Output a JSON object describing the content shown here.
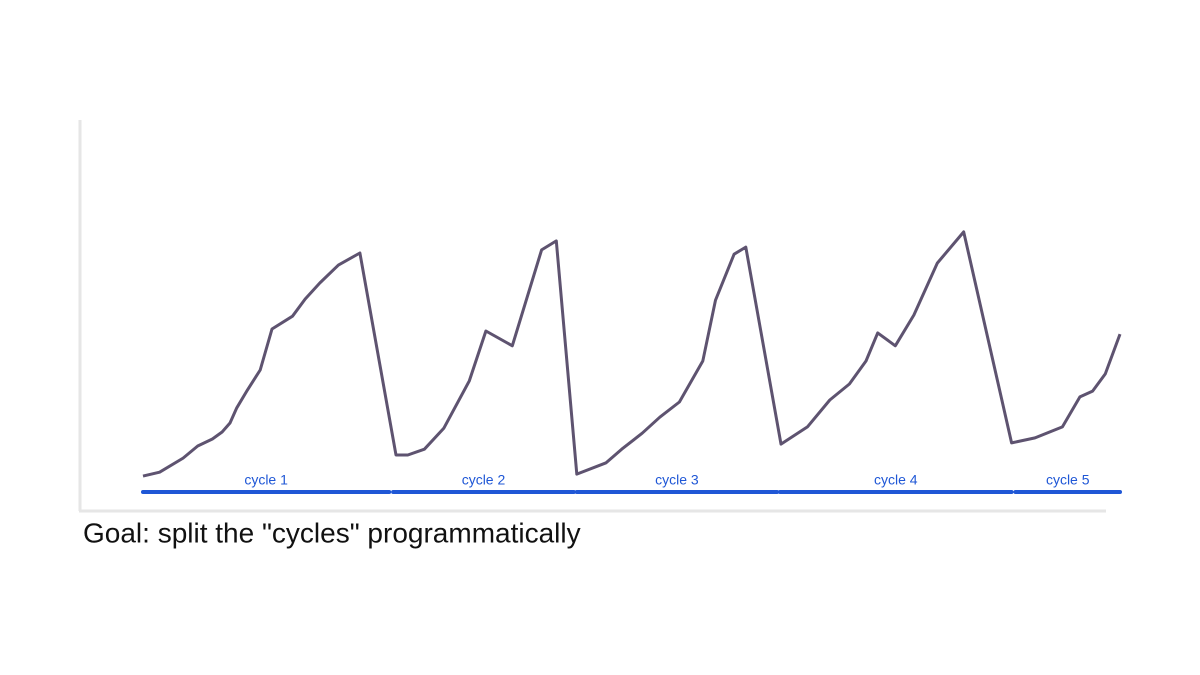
{
  "chart_data": {
    "type": "line",
    "caption": "Goal: split the \"cycles\" programmatically",
    "xlim": [
      0,
      100
    ],
    "ylim": [
      0,
      100
    ],
    "x": [
      0,
      1.7,
      4.1,
      5.6,
      7.1,
      8.1,
      8.9,
      9.6,
      10.7,
      12.0,
      13.2,
      15.3,
      16.6,
      18.1,
      20.0,
      22.2,
      25.9,
      27.1,
      28.8,
      30.8,
      33.4,
      35.1,
      37.8,
      40.8,
      42.3,
      44.4,
      47.4,
      49.0,
      51.1,
      52.9,
      54.9,
      57.3,
      58.6,
      60.5,
      61.7,
      65.3,
      68.0,
      70.3,
      72.3,
      74.0,
      75.2,
      77.0,
      78.9,
      81.3,
      84.0,
      88.9,
      91.3,
      94.1,
      95.9,
      97.2,
      98.5,
      100
    ],
    "series": [
      {
        "color": "#5e5370",
        "values": [
          8.7,
          9.7,
          13.3,
          16.4,
          18.2,
          20.0,
          22.3,
          26.2,
          30.8,
          35.9,
          46.4,
          49.7,
          54.1,
          58.2,
          62.8,
          65.9,
          14.1,
          14.1,
          15.6,
          21.0,
          33.1,
          45.9,
          42.1,
          66.7,
          69.0,
          9.2,
          12.1,
          15.6,
          19.7,
          23.8,
          27.7,
          38.2,
          53.8,
          65.6,
          67.4,
          16.9,
          21.3,
          28.2,
          32.3,
          38.2,
          45.4,
          42.1,
          50.0,
          63.3,
          71.3,
          17.2,
          18.5,
          21.3,
          29.0,
          30.5,
          34.9,
          45.1
        ]
      }
    ],
    "segment_color": "#1f57d6",
    "segments": [
      {
        "label": "cycle 1",
        "start": 0,
        "end": 25.2
      },
      {
        "label": "cycle 2",
        "start": 25.6,
        "end": 44.1
      },
      {
        "label": "cycle 3",
        "start": 44.4,
        "end": 64.9
      },
      {
        "label": "cycle 4",
        "start": 65.2,
        "end": 88.9
      },
      {
        "label": "cycle 5",
        "start": 89.3,
        "end": 100
      }
    ]
  }
}
